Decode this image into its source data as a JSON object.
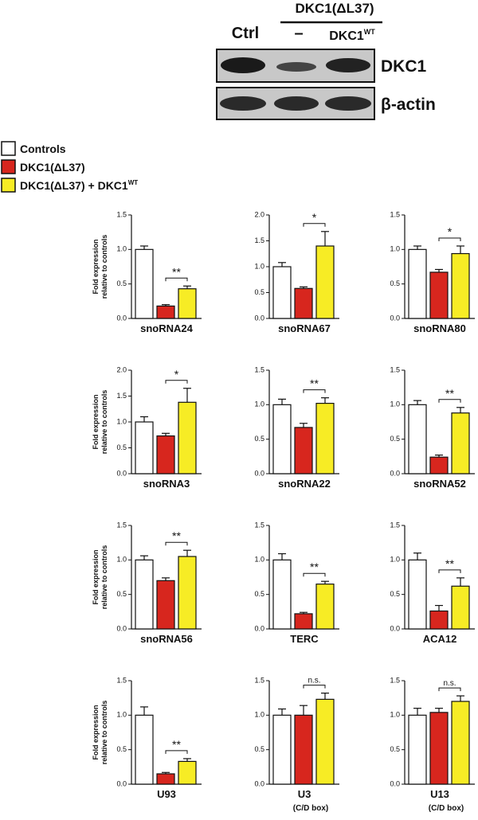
{
  "blot": {
    "header": "DKC1(ΔL37)",
    "lanes": [
      "Ctrl",
      "–",
      {
        "text": "DKC1",
        "sup": "WT"
      }
    ],
    "rows": [
      "DKC1",
      "β-actin"
    ]
  },
  "legend": [
    {
      "name": "Controls",
      "color": "#ffffff"
    },
    {
      "name": "DKC1(ΔL37)",
      "color": "#d7261e"
    },
    {
      "name": "DKC1(ΔL37) + DKC1",
      "sup": "WT",
      "color": "#f7ec25"
    }
  ],
  "chart_data": [
    {
      "type": "bar",
      "title": "snoRNA24",
      "ylabel": [
        "Fold expression",
        "relative to controls"
      ],
      "values": [
        1.0,
        0.18,
        0.43
      ],
      "errors": [
        0.05,
        0.02,
        0.04
      ],
      "significance": "**",
      "ylim": [
        0,
        1.5
      ],
      "yticks": [
        {
          "value": 0,
          "label": "0.0"
        },
        0.5,
        {
          "value": 1,
          "label": "1.0"
        },
        1.5
      ]
    },
    {
      "type": "bar",
      "title": "snoRNA67",
      "values": [
        1.0,
        0.58,
        1.4
      ],
      "errors": [
        0.08,
        0.03,
        0.28
      ],
      "significance": "*",
      "ylim": [
        0,
        2
      ],
      "yticks": [
        {
          "value": 0,
          "label": "0.0"
        },
        0.5,
        {
          "value": 1,
          "label": "1.0"
        },
        1.5,
        {
          "value": 2,
          "label": "2.0"
        }
      ]
    },
    {
      "type": "bar",
      "title": "snoRNA80",
      "values": [
        1.0,
        0.67,
        0.94
      ],
      "errors": [
        0.05,
        0.04,
        0.11
      ],
      "significance": "*",
      "ylim": [
        0,
        1.5
      ],
      "yticks": [
        {
          "value": 0,
          "label": "0.0"
        },
        0.5,
        {
          "value": 1,
          "label": "1.0"
        },
        1.5
      ]
    },
    {
      "type": "bar",
      "title": "snoRNA3",
      "ylabel": [
        "Fold expression",
        "relative to controls"
      ],
      "values": [
        1.0,
        0.73,
        1.38
      ],
      "errors": [
        0.1,
        0.05,
        0.27
      ],
      "significance": "*",
      "ylim": [
        0,
        2
      ],
      "yticks": [
        {
          "value": 0,
          "label": "0.0"
        },
        0.5,
        {
          "value": 1,
          "label": "1.0"
        },
        1.5,
        {
          "value": 2,
          "label": "2.0"
        }
      ]
    },
    {
      "type": "bar",
      "title": "snoRNA22",
      "values": [
        1.0,
        0.67,
        1.02
      ],
      "errors": [
        0.08,
        0.06,
        0.08
      ],
      "significance": "**",
      "ylim": [
        0,
        1.5
      ],
      "yticks": [
        {
          "value": 0,
          "label": "0.0"
        },
        0.5,
        {
          "value": 1,
          "label": "1.0"
        },
        1.5
      ]
    },
    {
      "type": "bar",
      "title": "snoRNA52",
      "values": [
        1.0,
        0.24,
        0.88
      ],
      "errors": [
        0.06,
        0.03,
        0.08
      ],
      "significance": "**",
      "ylim": [
        0,
        1.5
      ],
      "yticks": [
        {
          "value": 0,
          "label": "0.0"
        },
        0.5,
        {
          "value": 1,
          "label": "1.0"
        },
        1.5
      ]
    },
    {
      "type": "bar",
      "title": "snoRNA56",
      "ylabel": [
        "Fold expression",
        "relative to controls"
      ],
      "values": [
        1.0,
        0.7,
        1.05
      ],
      "errors": [
        0.06,
        0.04,
        0.09
      ],
      "significance": "**",
      "ylim": [
        0,
        1.5
      ],
      "yticks": [
        {
          "value": 0,
          "label": "0.0"
        },
        0.5,
        {
          "value": 1,
          "label": "1.0"
        },
        1.5
      ]
    },
    {
      "type": "bar",
      "title": "TERC",
      "values": [
        1.0,
        0.22,
        0.65
      ],
      "errors": [
        0.09,
        0.02,
        0.04
      ],
      "significance": "**",
      "ylim": [
        0,
        1.5
      ],
      "yticks": [
        {
          "value": 0,
          "label": "0.0"
        },
        0.5,
        {
          "value": 1,
          "label": "1.0"
        },
        1.5
      ]
    },
    {
      "type": "bar",
      "title": "ACA12",
      "values": [
        1.0,
        0.26,
        0.62
      ],
      "errors": [
        0.1,
        0.08,
        0.12
      ],
      "significance": "**",
      "ylim": [
        0,
        1.5
      ],
      "yticks": [
        {
          "value": 0,
          "label": "0.0"
        },
        0.5,
        {
          "value": 1,
          "label": "1.0"
        },
        1.5
      ]
    },
    {
      "type": "bar",
      "title": "U93",
      "ylabel": [
        "Fold expression",
        "relative to controls"
      ],
      "values": [
        1.0,
        0.15,
        0.33
      ],
      "errors": [
        0.12,
        0.02,
        0.04
      ],
      "significance": "**",
      "ylim": [
        0,
        1.5
      ],
      "yticks": [
        {
          "value": 0,
          "label": "0.0"
        },
        0.5,
        {
          "value": 1,
          "label": "1.0"
        },
        1.5
      ]
    },
    {
      "type": "bar",
      "title": "U3",
      "subtitle": "(C/D box)",
      "values": [
        1.0,
        1.0,
        1.23
      ],
      "errors": [
        0.09,
        0.14,
        0.09
      ],
      "significance": "n.s.",
      "ylim": [
        0,
        1.5
      ],
      "yticks": [
        {
          "value": 0,
          "label": "0.0"
        },
        0.5,
        {
          "value": 1,
          "label": "1.0"
        },
        1.5
      ]
    },
    {
      "type": "bar",
      "title": "U13",
      "subtitle": "(C/D box)",
      "values": [
        1.0,
        1.04,
        1.2
      ],
      "errors": [
        0.1,
        0.06,
        0.08
      ],
      "significance": "n.s.",
      "ylim": [
        0,
        1.5
      ],
      "yticks": [
        {
          "value": 0,
          "label": "0.0"
        },
        0.5,
        {
          "value": 1,
          "label": "1.0"
        },
        1.5
      ]
    }
  ]
}
